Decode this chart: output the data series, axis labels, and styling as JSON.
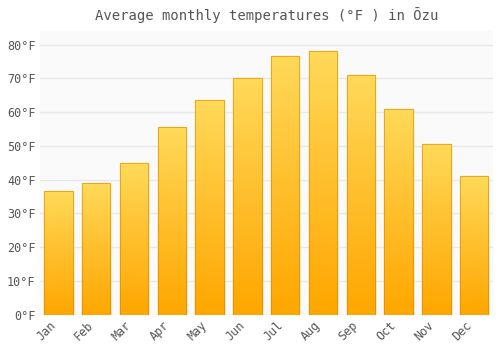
{
  "title": "Average monthly temperatures (°F ) in Ōzu",
  "months": [
    "Jan",
    "Feb",
    "Mar",
    "Apr",
    "May",
    "Jun",
    "Jul",
    "Aug",
    "Sep",
    "Oct",
    "Nov",
    "Dec"
  ],
  "values": [
    36.5,
    39.0,
    45.0,
    55.5,
    63.5,
    70.0,
    76.5,
    78.0,
    71.0,
    61.0,
    50.5,
    41.0
  ],
  "bar_color": "#FFAA00",
  "bar_color_light": "#FFD060",
  "background_color": "#FFFFFF",
  "plot_bg_color": "#FAFAFA",
  "grid_color": "#E8E8E8",
  "text_color": "#555555",
  "ylim": [
    0,
    84
  ],
  "yticks": [
    0,
    10,
    20,
    30,
    40,
    50,
    60,
    70,
    80
  ],
  "title_fontsize": 10,
  "tick_fontsize": 8.5
}
